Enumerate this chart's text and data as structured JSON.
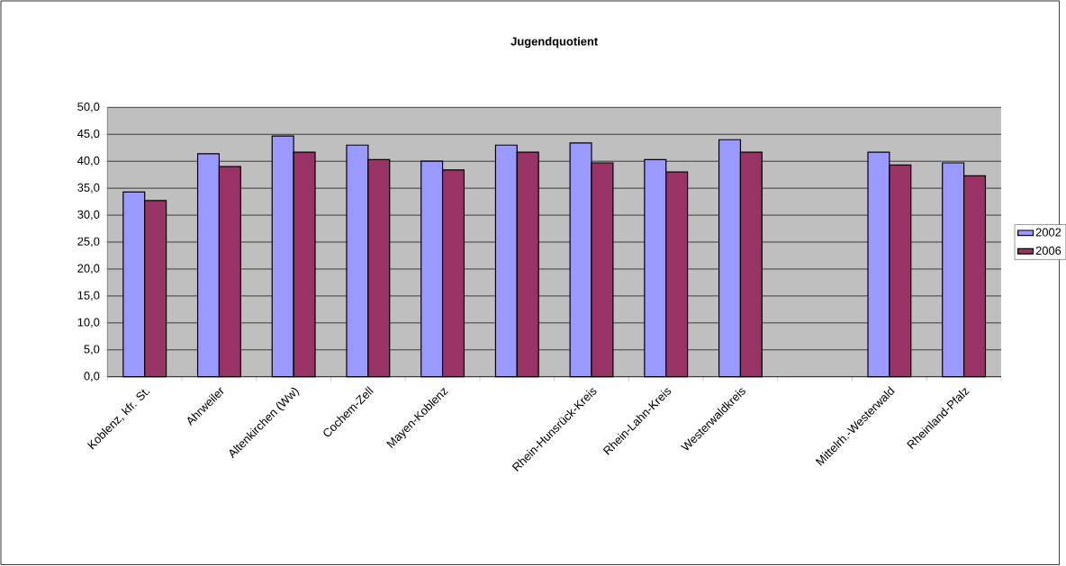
{
  "chart_data": {
    "type": "bar",
    "title": "Jugendquotient",
    "categories": [
      "Koblenz, kfr. St.",
      "Ahrweiler",
      "Altenkirchen (Ww)",
      "Cochem-Zell",
      "Mayen-Koblenz",
      null,
      "Rhein-Hunsrück-Kreis",
      "Rhein-Lahn-Kreis",
      "Westerwaldkreis",
      null,
      "Mittelrh.-Westerwald",
      "Rheinland-Pfalz"
    ],
    "series": [
      {
        "name": "2002",
        "color": "#9999ff",
        "values": [
          34.3,
          41.4,
          44.7,
          43.0,
          40.0,
          43.0,
          43.4,
          40.3,
          44.0,
          null,
          41.7,
          39.7
        ]
      },
      {
        "name": "2006",
        "color": "#993366",
        "values": [
          32.7,
          39.0,
          41.7,
          40.3,
          38.4,
          41.7,
          39.7,
          38.0,
          41.7,
          null,
          39.3,
          37.3
        ]
      }
    ],
    "ylim": [
      0,
      50
    ],
    "yticks": [
      {
        "value": 0,
        "label": "0,0"
      },
      {
        "value": 5,
        "label": "5,0"
      },
      {
        "value": 10,
        "label": "10,0"
      },
      {
        "value": 15,
        "label": "15,0"
      },
      {
        "value": 20,
        "label": "20,0"
      },
      {
        "value": 25,
        "label": "25,0"
      },
      {
        "value": 30,
        "label": "30,0"
      },
      {
        "value": 35,
        "label": "35,0"
      },
      {
        "value": 40,
        "label": "40,0"
      },
      {
        "value": 45,
        "label": "45,0"
      },
      {
        "value": 50,
        "label": "50,0"
      }
    ],
    "grid": "y",
    "legend": "right"
  }
}
